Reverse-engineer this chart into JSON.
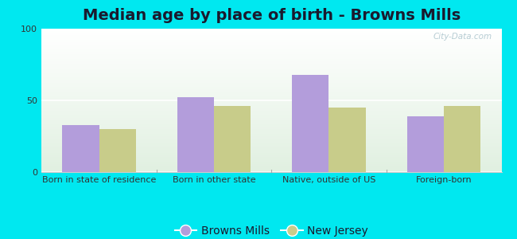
{
  "title": "Median age by place of birth - Browns Mills",
  "categories": [
    "Born in state of residence",
    "Born in other state",
    "Native, outside of US",
    "Foreign-born"
  ],
  "series": {
    "Browns Mills": [
      33,
      52,
      68,
      39
    ],
    "New Jersey": [
      30,
      46,
      45,
      46
    ]
  },
  "bar_colors": {
    "Browns Mills": "#b39ddb",
    "New Jersey": "#c8cc8a"
  },
  "ylim": [
    0,
    100
  ],
  "yticks": [
    0,
    50,
    100
  ],
  "background_color": "#00e8f0",
  "title_fontsize": 14,
  "label_fontsize": 8,
  "legend_fontsize": 10,
  "bar_width": 0.32,
  "watermark": "City-Data.com"
}
